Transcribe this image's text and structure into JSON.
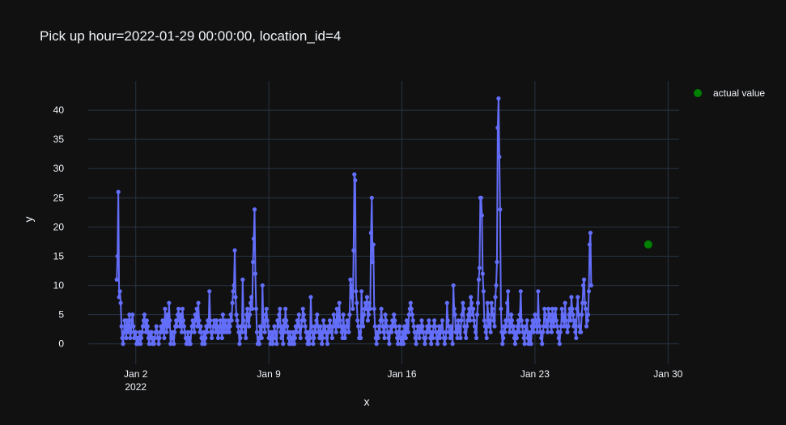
{
  "chart_data": {
    "type": "line",
    "title": "Pick up hour=2022-01-29 00:00:00, location_id=4",
    "xlabel": "x",
    "ylabel": "y",
    "xlim": [
      "2021-12-30T12:00",
      "2022-01-30T14:00"
    ],
    "ylim": [
      -3.5,
      45
    ],
    "y_ticks": [
      "0",
      "5",
      "10",
      "15",
      "20",
      "25",
      "30",
      "35",
      "40"
    ],
    "x_ticks": [
      {
        "date": "2022-01-02",
        "label": "Jan 2",
        "sublabel": "2022"
      },
      {
        "date": "2022-01-09",
        "label": "Jan 9",
        "sublabel": ""
      },
      {
        "date": "2022-01-16",
        "label": "Jan 16",
        "sublabel": ""
      },
      {
        "date": "2022-01-23",
        "label": "Jan 23",
        "sublabel": ""
      },
      {
        "date": "2022-01-30",
        "label": "Jan 30",
        "sublabel": ""
      }
    ],
    "grid": true,
    "legend_position": "top-right",
    "colors": {
      "series": "#636efa",
      "actual": "#008000",
      "background": "#111111",
      "grid": "#283442",
      "text": "#f2f5fa"
    },
    "series": [
      {
        "start": "2022-01-01T00:00",
        "interval_hours": 1,
        "values": [
          11,
          15,
          26,
          8,
          9,
          7,
          3,
          1,
          0,
          2,
          4,
          3,
          1,
          4,
          2,
          3,
          5,
          1,
          2,
          4,
          5,
          3,
          1,
          2,
          2,
          0,
          1,
          0,
          1,
          2,
          0,
          1,
          2,
          3,
          4,
          5,
          3,
          2,
          4,
          3,
          1,
          0,
          2,
          1,
          2,
          0,
          1,
          0,
          1,
          2,
          3,
          2,
          1,
          0,
          1,
          2,
          3,
          2,
          4,
          3,
          1,
          6,
          4,
          2,
          5,
          3,
          7,
          4,
          0,
          1,
          2,
          1,
          0,
          2,
          3,
          4,
          3,
          5,
          6,
          4,
          3,
          5,
          2,
          6,
          4,
          3,
          2,
          1,
          0,
          1,
          2,
          0,
          1,
          0,
          2,
          3,
          4,
          3,
          2,
          5,
          4,
          6,
          3,
          7,
          4,
          2,
          3,
          1,
          0,
          1,
          2,
          0,
          1,
          3,
          2,
          4,
          3,
          9,
          4,
          2,
          1,
          2,
          3,
          4,
          3,
          2,
          4,
          3,
          1,
          2,
          3,
          4,
          2,
          1,
          5,
          3,
          2,
          4,
          3,
          2,
          3,
          4,
          2,
          3,
          5,
          4,
          7,
          9,
          10,
          16,
          8,
          5,
          4,
          3,
          2,
          0,
          1,
          3,
          2,
          11,
          4,
          3,
          2,
          1,
          5,
          6,
          4,
          3,
          5,
          7,
          8,
          6,
          14,
          18,
          23,
          12,
          6,
          2,
          0,
          1,
          0,
          3,
          2,
          1,
          10,
          4,
          3,
          2,
          5,
          6,
          4,
          3,
          1,
          2,
          0,
          1,
          2,
          0,
          1,
          3,
          2,
          1,
          0,
          4,
          3,
          5,
          6,
          2,
          1,
          3,
          0,
          4,
          2,
          6,
          4,
          3,
          2,
          1,
          0,
          2,
          1,
          0,
          1,
          2,
          0,
          1,
          3,
          2,
          4,
          3,
          5,
          2,
          1,
          3,
          4,
          6,
          5,
          4,
          3,
          2,
          1,
          0,
          2,
          0,
          1,
          8,
          3,
          2,
          0,
          1,
          3,
          2,
          4,
          5,
          3,
          2,
          1,
          3,
          2,
          0,
          1,
          4,
          2,
          3,
          2,
          1,
          0,
          3,
          2,
          4,
          3,
          2,
          1,
          3,
          5,
          4,
          3,
          2,
          6,
          4,
          3,
          7,
          4,
          3,
          2,
          1,
          5,
          3,
          1,
          2,
          3,
          4,
          3,
          2,
          5,
          11,
          10,
          8,
          6,
          16,
          29,
          28,
          9,
          7,
          4,
          3,
          1,
          2,
          1,
          9,
          4,
          3,
          5,
          6,
          7,
          6,
          8,
          4,
          5,
          7,
          6,
          19,
          25,
          14,
          17,
          6,
          3,
          1,
          0,
          2,
          1,
          3,
          2,
          4,
          6,
          4,
          3,
          2,
          1,
          5,
          4,
          3,
          2,
          1,
          0,
          2,
          3,
          2,
          4,
          3,
          5,
          4,
          3,
          2,
          1,
          0,
          2,
          3,
          1,
          0,
          1,
          2,
          0,
          3,
          2,
          1,
          4,
          3,
          2,
          5,
          6,
          7,
          6,
          5,
          4,
          3,
          2,
          1,
          0,
          2,
          3,
          2,
          1,
          3,
          2,
          4,
          3,
          2,
          1,
          0,
          1,
          2,
          3,
          2,
          4,
          3,
          1,
          0,
          2,
          1,
          3,
          4,
          3,
          2,
          1,
          0,
          2,
          3,
          1,
          2,
          3,
          4,
          2,
          1,
          0,
          1,
          2,
          7,
          4,
          3,
          2,
          1,
          3,
          2,
          0,
          10,
          6,
          5,
          2,
          3,
          1,
          4,
          3,
          2,
          1,
          4,
          5,
          7,
          6,
          3,
          2,
          1,
          3,
          4,
          5,
          6,
          4,
          8,
          7,
          5,
          6,
          4,
          3,
          2,
          1,
          5,
          7,
          11,
          13,
          25,
          25,
          22,
          12,
          9,
          4,
          3,
          2,
          1,
          7,
          5,
          3,
          4,
          2,
          7,
          6,
          5,
          4,
          3,
          8,
          10,
          14,
          37,
          42,
          32,
          23,
          6,
          2,
          0,
          1,
          3,
          2,
          4,
          3,
          7,
          9,
          4,
          2,
          3,
          5,
          4,
          2,
          3,
          1,
          0,
          2,
          1,
          3,
          4,
          2,
          5,
          9,
          4,
          3,
          2,
          1,
          0,
          3,
          2,
          4,
          1,
          0,
          2,
          1,
          0,
          3,
          4,
          2,
          3,
          5,
          4,
          3,
          2,
          9,
          4,
          3,
          2,
          1,
          0,
          2,
          3,
          6,
          5,
          3,
          4,
          2,
          6,
          4,
          5,
          3,
          2,
          6,
          4,
          3,
          5,
          6,
          4,
          3,
          2,
          1,
          0,
          2,
          3,
          6,
          5,
          4,
          3,
          7,
          4,
          3,
          2,
          3,
          5,
          6,
          4,
          8,
          6,
          5,
          3,
          4,
          2,
          1,
          6,
          8,
          5,
          3,
          2,
          2,
          5,
          7,
          10,
          11,
          7,
          6,
          3,
          4,
          5,
          9,
          17,
          19,
          10
        ]
      }
    ],
    "actual_point": {
      "x": "2022-01-28T23:00",
      "y": 17,
      "name": "actual value"
    }
  }
}
